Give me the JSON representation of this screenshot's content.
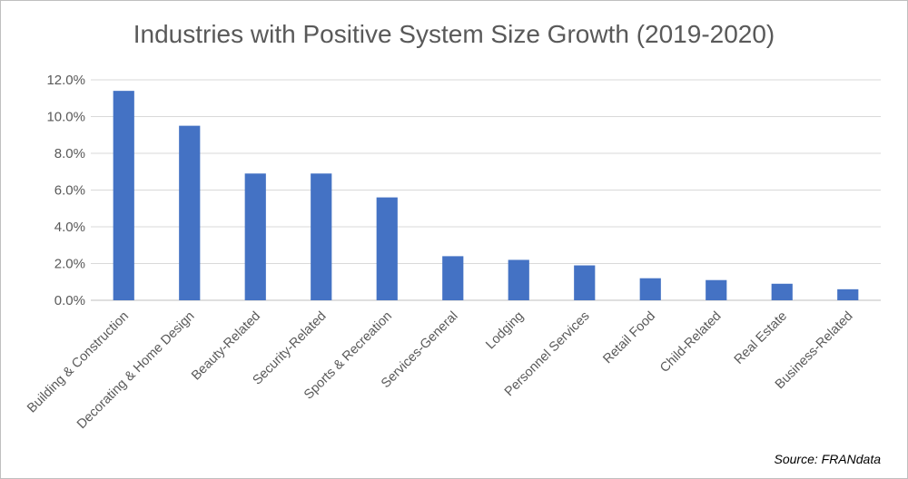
{
  "chart_data": {
    "type": "bar",
    "title": "Industries with Positive System Size Growth (2019-2020)",
    "categories": [
      "Building & Construction",
      "Decorating & Home Design",
      "Beauty-Related",
      "Security-Related",
      "Sports & Recreation",
      "Services-General",
      "Lodging",
      "Personnel Services",
      "Retail Food",
      "Child-Related",
      "Real Estate",
      "Business-Related"
    ],
    "values": [
      11.4,
      9.5,
      6.9,
      6.9,
      5.6,
      2.4,
      2.2,
      1.9,
      1.2,
      1.1,
      0.9,
      0.6
    ],
    "ylim": [
      0,
      12
    ],
    "yticks": [
      "0.0%",
      "2.0%",
      "4.0%",
      "6.0%",
      "8.0%",
      "10.0%",
      "12.0%"
    ],
    "xlabel": "",
    "ylabel": "",
    "grid": true,
    "legend": "none",
    "bar_color": "#4472c4",
    "source": "Source: FRANdata"
  }
}
